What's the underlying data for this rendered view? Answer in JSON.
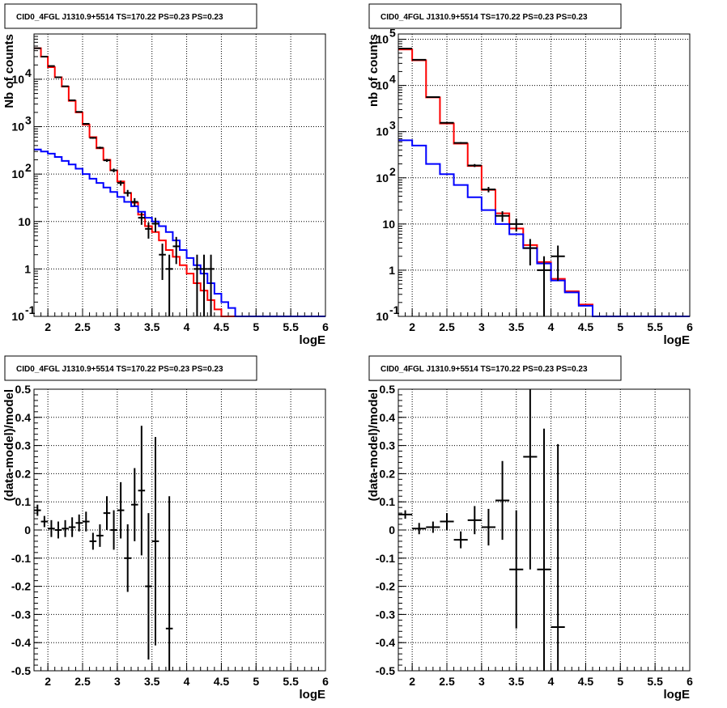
{
  "colors": {
    "model_total": "#ff0000",
    "model_bkg": "#0000ff",
    "data": "#000000"
  },
  "chart_data": [
    {
      "id": "counts-left",
      "type": "line",
      "title": "CID0_4FGL J1310.9+5514 TS=170.22 PS=0.23 PS=0.23",
      "xlabel": "logE",
      "ylabel": "Nb of counts",
      "xlim": [
        1.8,
        6.0
      ],
      "ylim": [
        0.1,
        90000
      ],
      "yscale": "log",
      "xticks": [
        "2",
        "2.5",
        "3",
        "3.5",
        "4",
        "4.5",
        "5",
        "5.5",
        "6"
      ],
      "yticks": [
        "10^-1",
        "1",
        "10",
        "10^2",
        "10^3",
        "10^4"
      ],
      "grid": true,
      "bin_edges": [
        1.8,
        1.9,
        2.0,
        2.1,
        2.2,
        2.3,
        2.4,
        2.5,
        2.6,
        2.7,
        2.8,
        2.9,
        3.0,
        3.1,
        3.2,
        3.3,
        3.4,
        3.5,
        3.6,
        3.7,
        3.8,
        3.9,
        4.0,
        4.1,
        4.2,
        4.3,
        4.4,
        4.5,
        4.6,
        4.7,
        4.8,
        4.9,
        5.0,
        5.1,
        5.2,
        5.3,
        5.4,
        5.5,
        5.6,
        5.7,
        5.8,
        5.9,
        6.0
      ],
      "series": [
        {
          "name": "",
          "role": "model_total",
          "color": "#ff0000",
          "values": [
            45000,
            30000,
            18000,
            11000,
            7000,
            3500,
            2000,
            1100,
            600,
            350,
            200,
            120,
            70,
            40,
            25,
            14,
            8,
            6,
            4,
            2.5,
            1.8,
            1.2,
            0.8,
            0.5,
            0.35,
            0.22,
            0.14,
            0.1,
            0.1,
            0.1,
            0.1,
            0.1,
            0.1,
            0.1,
            0.1,
            0.1,
            0.1,
            0.1,
            0.1,
            0.1,
            0.1,
            0.1
          ]
        },
        {
          "name": "",
          "role": "model_bkg",
          "color": "#0000ff",
          "values": [
            330,
            300,
            270,
            230,
            190,
            160,
            130,
            100,
            80,
            65,
            52,
            42,
            33,
            26,
            21,
            16,
            12,
            10,
            8,
            6,
            4,
            2.5,
            1.7,
            1.2,
            0.8,
            0.5,
            0.3,
            0.2,
            0.15,
            0.1,
            0.1,
            0.1,
            0.1,
            0.1,
            0.1,
            0.1,
            0.1,
            0.1,
            0.1,
            0.1,
            0.1,
            0.1
          ]
        }
      ],
      "points": [
        {
          "x": 1.85,
          "y": 45000
        },
        {
          "x": 1.95,
          "y": 30000
        },
        {
          "x": 2.05,
          "y": 19000
        },
        {
          "x": 2.15,
          "y": 11000
        },
        {
          "x": 2.25,
          "y": 7100
        },
        {
          "x": 2.35,
          "y": 3600
        },
        {
          "x": 2.45,
          "y": 2050
        },
        {
          "x": 2.55,
          "y": 1150
        },
        {
          "x": 2.65,
          "y": 580
        },
        {
          "x": 2.75,
          "y": 360
        },
        {
          "x": 2.85,
          "y": 195
        },
        {
          "x": 2.95,
          "y": 120
        },
        {
          "x": 3.05,
          "y": 65
        },
        {
          "x": 3.15,
          "y": 40
        },
        {
          "x": 3.25,
          "y": 26
        },
        {
          "x": 3.35,
          "y": 12
        },
        {
          "x": 3.45,
          "y": 7
        },
        {
          "x": 3.55,
          "y": 9
        },
        {
          "x": 3.65,
          "y": 2
        },
        {
          "x": 3.75,
          "y": 1
        },
        {
          "x": 3.85,
          "y": 3
        },
        {
          "x": 4.15,
          "y": 1
        },
        {
          "x": 4.25,
          "y": 1
        },
        {
          "x": 4.35,
          "y": 1
        }
      ]
    },
    {
      "id": "counts-right",
      "type": "line",
      "title": "CID0_4FGL J1310.9+5514 TS=170.22 PS=0.23 PS=0.23",
      "xlabel": "logE",
      "ylabel": "nb of counts",
      "xlim": [
        1.8,
        6.0
      ],
      "ylim": [
        0.1,
        130000
      ],
      "yscale": "log",
      "xticks": [
        "2",
        "2.5",
        "3",
        "3.5",
        "4",
        "4.5",
        "5",
        "5.5",
        "6"
      ],
      "yticks": [
        "10^-1",
        "1",
        "10",
        "10^2",
        "10^3",
        "10^4",
        "10^5"
      ],
      "grid": true,
      "bin_edges": [
        1.8,
        2.0,
        2.2,
        2.4,
        2.6,
        2.8,
        3.0,
        3.2,
        3.4,
        3.6,
        3.8,
        4.0,
        4.2,
        4.4,
        4.6,
        4.8,
        5.0,
        5.2,
        5.4,
        5.6,
        5.8,
        6.0
      ],
      "series": [
        {
          "name": "",
          "role": "model_total",
          "color": "#ff0000",
          "values": [
            60000,
            35000,
            5500,
            1500,
            550,
            180,
            55,
            17,
            8,
            3.5,
            1.5,
            0.65,
            0.35,
            0.18,
            0.1,
            0.1,
            0.1,
            0.1,
            0.1,
            0.1,
            0.1
          ]
        },
        {
          "name": "",
          "role": "model_bkg",
          "color": "#0000ff",
          "values": [
            650,
            500,
            200,
            120,
            70,
            38,
            20,
            10,
            6,
            3,
            1.4,
            0.6,
            0.33,
            0.17,
            0.1,
            0.1,
            0.1,
            0.1,
            0.1,
            0.1,
            0.1
          ]
        }
      ],
      "points": [
        {
          "x": 1.9,
          "y": 63000
        },
        {
          "x": 2.1,
          "y": 36000
        },
        {
          "x": 2.3,
          "y": 5600
        },
        {
          "x": 2.5,
          "y": 1550
        },
        {
          "x": 2.7,
          "y": 570
        },
        {
          "x": 2.9,
          "y": 185
        },
        {
          "x": 3.1,
          "y": 56
        },
        {
          "x": 3.3,
          "y": 15
        },
        {
          "x": 3.5,
          "y": 10
        },
        {
          "x": 3.7,
          "y": 3
        },
        {
          "x": 3.9,
          "y": 1
        },
        {
          "x": 4.1,
          "y": 2
        }
      ]
    },
    {
      "id": "residual-left",
      "type": "scatter",
      "title": "CID0_4FGL J1310.9+5514 TS=170.22 PS=0.23 PS=0.23",
      "xlabel": "logE",
      "ylabel": "(data-model)/model",
      "xlim": [
        1.8,
        6.0
      ],
      "ylim": [
        -0.5,
        0.5
      ],
      "xticks": [
        "2",
        "2.5",
        "3",
        "3.5",
        "4",
        "4.5",
        "5",
        "5.5",
        "6"
      ],
      "yticks": [
        "-0.5",
        "-0.4",
        "-0.3",
        "-0.2",
        "-0.1",
        "0",
        "0.1",
        "0.2",
        "0.3",
        "0.4",
        "0.5"
      ],
      "grid": true,
      "points": [
        {
          "x": 1.85,
          "y": 0.07,
          "err": 0.02
        },
        {
          "x": 1.95,
          "y": 0.03,
          "err": 0.02
        },
        {
          "x": 2.05,
          "y": 0.005,
          "err": 0.03
        },
        {
          "x": 2.15,
          "y": 0.0,
          "err": 0.03
        },
        {
          "x": 2.25,
          "y": 0.005,
          "err": 0.03
        },
        {
          "x": 2.35,
          "y": 0.01,
          "err": 0.035
        },
        {
          "x": 2.45,
          "y": 0.025,
          "err": 0.03
        },
        {
          "x": 2.55,
          "y": 0.03,
          "err": 0.035
        },
        {
          "x": 2.65,
          "y": -0.04,
          "err": 0.03
        },
        {
          "x": 2.75,
          "y": -0.02,
          "err": 0.04
        },
        {
          "x": 2.85,
          "y": 0.06,
          "err": 0.06
        },
        {
          "x": 2.95,
          "y": 0.0,
          "err": 0.07
        },
        {
          "x": 3.05,
          "y": 0.07,
          "err": 0.1
        },
        {
          "x": 3.15,
          "y": -0.1,
          "err": 0.12
        },
        {
          "x": 3.25,
          "y": 0.09,
          "err": 0.13
        },
        {
          "x": 3.35,
          "y": 0.14,
          "err": 0.23
        },
        {
          "x": 3.45,
          "y": -0.2,
          "err": 0.26
        },
        {
          "x": 3.55,
          "y": -0.04,
          "err": 0.37
        },
        {
          "x": 3.75,
          "y": -0.35,
          "err": 0.47
        }
      ]
    },
    {
      "id": "residual-right",
      "type": "scatter",
      "title": "CID0_4FGL J1310.9+5514 TS=170.22 PS=0.23 PS=0.23",
      "xlabel": "logE",
      "ylabel": "(data-model)/model",
      "xlim": [
        1.8,
        6.0
      ],
      "ylim": [
        -0.5,
        0.5
      ],
      "xticks": [
        "2",
        "2.5",
        "3",
        "3.5",
        "4",
        "4.5",
        "5",
        "5.5",
        "6"
      ],
      "yticks": [
        "-0.5",
        "-0.4",
        "-0.3",
        "-0.2",
        "-0.1",
        "0",
        "0.1",
        "0.2",
        "0.3",
        "0.4",
        "0.5"
      ],
      "grid": true,
      "points": [
        {
          "x": 1.9,
          "y": 0.055,
          "err": 0.015
        },
        {
          "x": 2.1,
          "y": 0.005,
          "err": 0.02
        },
        {
          "x": 2.3,
          "y": 0.01,
          "err": 0.02
        },
        {
          "x": 2.5,
          "y": 0.03,
          "err": 0.03
        },
        {
          "x": 2.7,
          "y": -0.035,
          "err": 0.03
        },
        {
          "x": 2.9,
          "y": 0.035,
          "err": 0.05
        },
        {
          "x": 3.1,
          "y": 0.01,
          "err": 0.065
        },
        {
          "x": 3.3,
          "y": 0.105,
          "err": 0.14
        },
        {
          "x": 3.5,
          "y": -0.14,
          "err": 0.21
        },
        {
          "x": 3.7,
          "y": 0.26,
          "err": 0.4
        },
        {
          "x": 3.9,
          "y": -0.14,
          "err": 0.5
        },
        {
          "x": 4.1,
          "y": -0.345,
          "err": 0.65
        }
      ]
    }
  ]
}
